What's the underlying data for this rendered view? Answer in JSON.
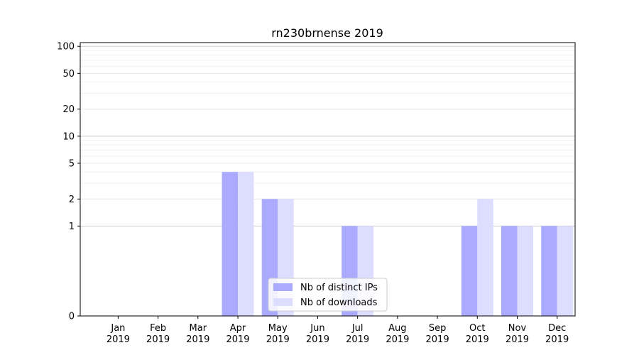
{
  "chart_data": {
    "type": "bar",
    "title": "rn230brnense 2019",
    "xlabel": "",
    "ylabel": "",
    "y_scale": "symlog",
    "ylim": [
      0,
      110
    ],
    "y_ticks": [
      0,
      1,
      2,
      5,
      10,
      20,
      50,
      100
    ],
    "y_tick_labels": [
      "0",
      "1",
      "2",
      "5",
      "10",
      "20",
      "50",
      "100"
    ],
    "categories": [
      "Jan\n2019",
      "Feb\n2019",
      "Mar\n2019",
      "Apr\n2019",
      "May\n2019",
      "Jun\n2019",
      "Jul\n2019",
      "Aug\n2019",
      "Sep\n2019",
      "Oct\n2019",
      "Nov\n2019",
      "Dec\n2019"
    ],
    "series": [
      {
        "name": "Nb of distinct IPs",
        "color": "#aaaaff",
        "values": [
          0,
          0,
          0,
          4,
          2,
          0,
          1,
          0,
          0,
          1,
          1,
          1
        ]
      },
      {
        "name": "Nb of downloads",
        "color": "#ddddff",
        "values": [
          0,
          0,
          0,
          4,
          2,
          0,
          1,
          0,
          0,
          2,
          1,
          1
        ]
      }
    ],
    "grid": true,
    "legend_position": "lower-center"
  }
}
